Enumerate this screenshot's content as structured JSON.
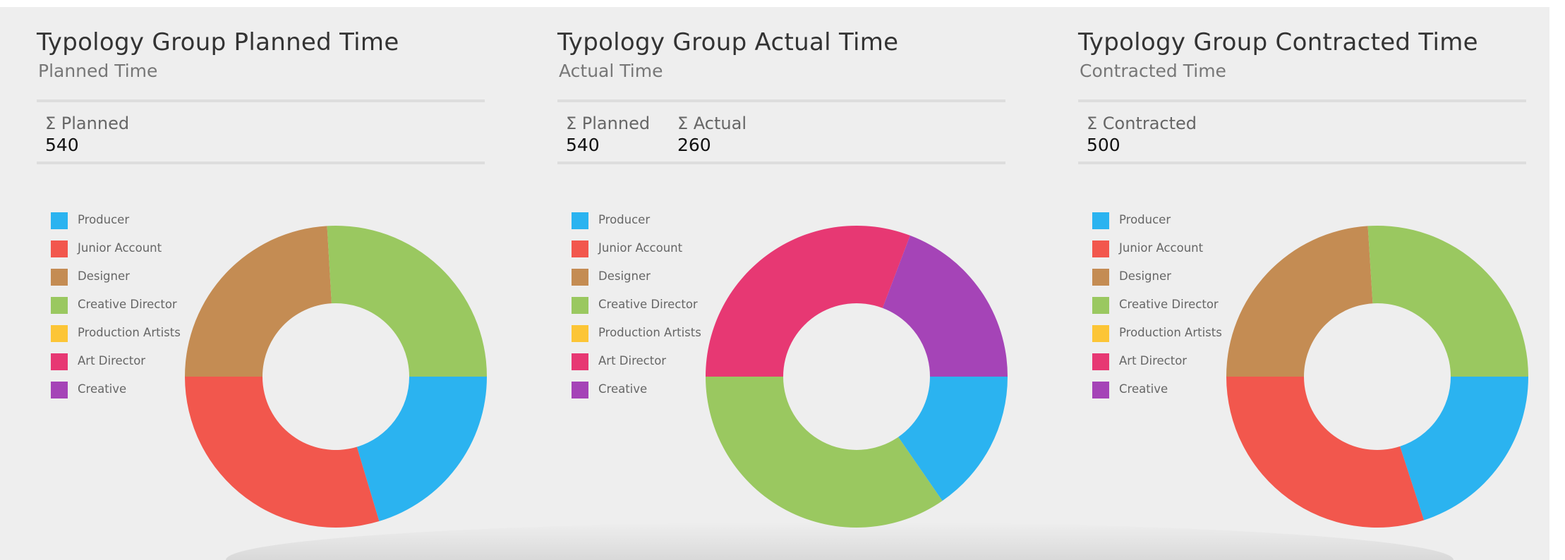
{
  "colors": {
    "Producer": "#2bb3f0",
    "Junior Account": "#f2574d",
    "Designer": "#c48c53",
    "Creative Director": "#9ac860",
    "Production Artists": "#fcc536",
    "Art Director": "#e73873",
    "Creative": "#a544b7"
  },
  "legend_items": [
    "Producer",
    "Junior Account",
    "Designer",
    "Creative Director",
    "Production Artists",
    "Art Director",
    "Creative"
  ],
  "chart_data": [
    {
      "type": "pie",
      "title": "Typology Group Planned Time",
      "subtitle": "Planned Time",
      "stats": [
        {
          "label": "Σ Planned",
          "value": "540"
        }
      ],
      "legend": [
        "Producer",
        "Junior Account",
        "Designer",
        "Creative Director",
        "Production Artists",
        "Art Director",
        "Creative"
      ],
      "slices": [
        {
          "label": "Producer",
          "value": 110
        },
        {
          "label": "Junior Account",
          "value": 160
        },
        {
          "label": "Designer",
          "value": 130
        },
        {
          "label": "Creative Director",
          "value": 140
        }
      ]
    },
    {
      "type": "pie",
      "title": "Typology Group Actual Time",
      "subtitle": "Actual Time",
      "stats": [
        {
          "label": "Σ Planned",
          "value": "540"
        },
        {
          "label": "Σ Actual",
          "value": "260"
        }
      ],
      "legend": [
        "Producer",
        "Junior Account",
        "Designer",
        "Creative Director",
        "Production Artists",
        "Art Director",
        "Creative"
      ],
      "slices": [
        {
          "label": "Producer",
          "value": 40
        },
        {
          "label": "Creative Director",
          "value": 90
        },
        {
          "label": "Art Director",
          "value": 80
        },
        {
          "label": "Creative",
          "value": 50
        }
      ]
    },
    {
      "type": "pie",
      "title": "Typology Group Contracted Time",
      "subtitle": "Contracted Time",
      "stats": [
        {
          "label": "Σ Contracted",
          "value": "500"
        }
      ],
      "legend": [
        "Producer",
        "Junior Account",
        "Designer",
        "Creative Director",
        "Production Artists",
        "Art Director",
        "Creative"
      ],
      "slices": [
        {
          "label": "Producer",
          "value": 100
        },
        {
          "label": "Junior Account",
          "value": 150
        },
        {
          "label": "Designer",
          "value": 120
        },
        {
          "label": "Creative Director",
          "value": 130
        }
      ]
    }
  ]
}
